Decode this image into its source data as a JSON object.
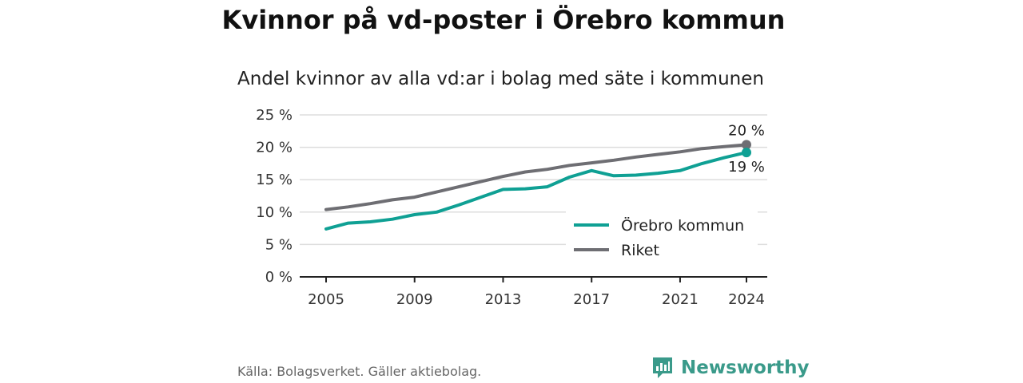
{
  "title": "Kvinnor på vd-poster i Örebro kommun",
  "subtitle": "Andel kvinnor av alla vd:ar i bolag med säte i kommunen",
  "source": "Källa: Bolagsverket. Gäller aktiebolag.",
  "brand": "Newsworthy",
  "colors": {
    "orebro": "#0fa094",
    "riket": "#6e6e73",
    "grid": "#dddddd",
    "axis": "#222222"
  },
  "chart_data": {
    "type": "line",
    "x": [
      2005,
      2006,
      2007,
      2008,
      2009,
      2010,
      2011,
      2012,
      2013,
      2014,
      2015,
      2016,
      2017,
      2018,
      2019,
      2020,
      2021,
      2022,
      2023,
      2024
    ],
    "series": [
      {
        "name": "Örebro kommun",
        "color": "#0fa094",
        "values": [
          7.4,
          8.3,
          8.5,
          8.9,
          9.6,
          10.0,
          11.1,
          12.3,
          13.5,
          13.6,
          13.9,
          15.4,
          16.4,
          15.6,
          15.7,
          16.0,
          16.4,
          17.5,
          18.4,
          19.2
        ],
        "end_label": "19 %"
      },
      {
        "name": "Riket",
        "color": "#6e6e73",
        "values": [
          10.4,
          10.8,
          11.3,
          11.9,
          12.3,
          13.1,
          13.9,
          14.7,
          15.5,
          16.2,
          16.6,
          17.2,
          17.6,
          18.0,
          18.5,
          18.9,
          19.3,
          19.8,
          20.1,
          20.4
        ],
        "end_label": "20 %"
      }
    ],
    "x_ticks": [
      2005,
      2009,
      2013,
      2017,
      2021,
      2024
    ],
    "y_ticks": [
      0,
      5,
      10,
      15,
      20,
      25
    ],
    "y_tick_labels": [
      "0 %",
      "5 %",
      "10 %",
      "15 %",
      "20 %",
      "25 %"
    ],
    "ylim": [
      0,
      25
    ],
    "xlim": [
      2005,
      2024
    ],
    "grid": true,
    "legend": "bottom-right"
  }
}
